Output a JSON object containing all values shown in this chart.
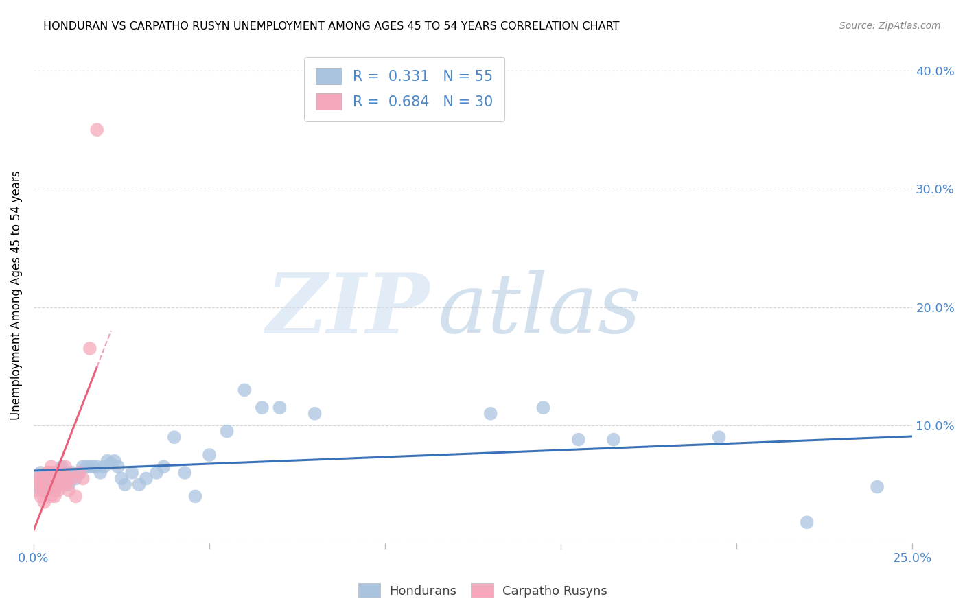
{
  "title": "HONDURAN VS CARPATHO RUSYN UNEMPLOYMENT AMONG AGES 45 TO 54 YEARS CORRELATION CHART",
  "source": "Source: ZipAtlas.com",
  "ylabel": "Unemployment Among Ages 45 to 54 years",
  "xlim": [
    0.0,
    0.25
  ],
  "ylim": [
    0.0,
    0.42
  ],
  "x_ticks": [
    0.0,
    0.05,
    0.1,
    0.15,
    0.2,
    0.25
  ],
  "x_tick_labels": [
    "0.0%",
    "",
    "",
    "",
    "",
    "25.0%"
  ],
  "y_ticks": [
    0.0,
    0.1,
    0.2,
    0.3,
    0.4
  ],
  "y_tick_labels": [
    "",
    "10.0%",
    "20.0%",
    "30.0%",
    "40.0%"
  ],
  "honduran_color": "#aac4e0",
  "honduran_line_color": "#3a72b8",
  "carpatho_color": "#f5a8bb",
  "carpatho_line_color": "#e8607a",
  "carpatho_line_dash_color": "#f0a0b8",
  "honduran_R": 0.331,
  "honduran_N": 55,
  "carpatho_R": 0.684,
  "carpatho_N": 30,
  "legend_label_honduran": "Hondurans",
  "legend_label_carpatho": "Carpatho Rusyns",
  "watermark_zip": "ZIP",
  "watermark_atlas": "atlas",
  "background_color": "#ffffff",
  "grid_color": "#cccccc",
  "honduran_x": [
    0.001,
    0.001,
    0.002,
    0.002,
    0.003,
    0.003,
    0.004,
    0.004,
    0.005,
    0.005,
    0.006,
    0.006,
    0.007,
    0.007,
    0.008,
    0.009,
    0.01,
    0.01,
    0.011,
    0.012,
    0.013,
    0.014,
    0.015,
    0.016,
    0.017,
    0.018,
    0.019,
    0.02,
    0.021,
    0.022,
    0.023,
    0.024,
    0.025,
    0.026,
    0.028,
    0.03,
    0.032,
    0.035,
    0.037,
    0.04,
    0.043,
    0.046,
    0.05,
    0.055,
    0.06,
    0.065,
    0.07,
    0.08,
    0.13,
    0.145,
    0.155,
    0.165,
    0.195,
    0.22,
    0.24
  ],
  "honduran_y": [
    0.05,
    0.055,
    0.045,
    0.06,
    0.05,
    0.055,
    0.05,
    0.06,
    0.055,
    0.05,
    0.06,
    0.045,
    0.055,
    0.06,
    0.065,
    0.055,
    0.06,
    0.05,
    0.06,
    0.055,
    0.06,
    0.065,
    0.065,
    0.065,
    0.065,
    0.065,
    0.06,
    0.065,
    0.07,
    0.068,
    0.07,
    0.065,
    0.055,
    0.05,
    0.06,
    0.05,
    0.055,
    0.06,
    0.065,
    0.09,
    0.06,
    0.04,
    0.075,
    0.095,
    0.13,
    0.115,
    0.115,
    0.11,
    0.11,
    0.115,
    0.088,
    0.088,
    0.09,
    0.018,
    0.048
  ],
  "carpatho_x": [
    0.001,
    0.001,
    0.002,
    0.002,
    0.002,
    0.003,
    0.003,
    0.003,
    0.004,
    0.004,
    0.005,
    0.005,
    0.005,
    0.006,
    0.006,
    0.006,
    0.007,
    0.007,
    0.008,
    0.008,
    0.009,
    0.009,
    0.01,
    0.01,
    0.011,
    0.012,
    0.013,
    0.014,
    0.016,
    0.018
  ],
  "carpatho_y": [
    0.055,
    0.045,
    0.05,
    0.055,
    0.04,
    0.045,
    0.055,
    0.035,
    0.05,
    0.06,
    0.06,
    0.065,
    0.04,
    0.055,
    0.045,
    0.04,
    0.05,
    0.045,
    0.06,
    0.055,
    0.065,
    0.05,
    0.055,
    0.045,
    0.055,
    0.04,
    0.06,
    0.055,
    0.165,
    0.35
  ]
}
